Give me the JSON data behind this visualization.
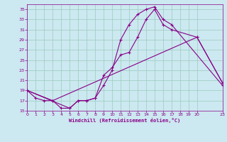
{
  "xlabel": "Windchill (Refroidissement éolien,°C)",
  "bg_color": "#cce8f0",
  "grid_color": "#99ccbb",
  "line_color": "#880088",
  "xlim": [
    0,
    23
  ],
  "ylim": [
    15,
    36
  ],
  "xticks": [
    0,
    1,
    2,
    3,
    4,
    5,
    6,
    7,
    8,
    9,
    10,
    11,
    12,
    13,
    14,
    15,
    16,
    17,
    18,
    19,
    20,
    23
  ],
  "yticks": [
    15,
    17,
    19,
    21,
    23,
    25,
    27,
    29,
    31,
    33,
    35
  ],
  "line1_x": [
    0,
    1,
    2,
    3,
    4,
    5,
    6,
    7,
    8,
    9,
    10,
    11,
    12,
    13,
    14,
    15,
    16,
    17,
    23
  ],
  "line1_y": [
    19,
    17.5,
    17,
    17,
    15.5,
    15.5,
    17,
    17,
    17.5,
    20,
    23,
    29,
    32,
    34,
    35,
    35.5,
    33,
    32,
    20
  ],
  "line2_x": [
    0,
    5,
    6,
    7,
    8,
    9,
    10,
    11,
    12,
    13,
    14,
    15,
    16,
    17,
    20,
    23
  ],
  "line2_y": [
    19,
    15.5,
    17,
    17,
    17.5,
    22,
    23.5,
    26,
    26.5,
    29.5,
    33,
    35,
    32,
    31,
    29.5,
    20.5
  ],
  "line3_x": [
    0,
    3,
    20,
    23
  ],
  "line3_y": [
    19,
    17,
    29.5,
    20.5
  ]
}
